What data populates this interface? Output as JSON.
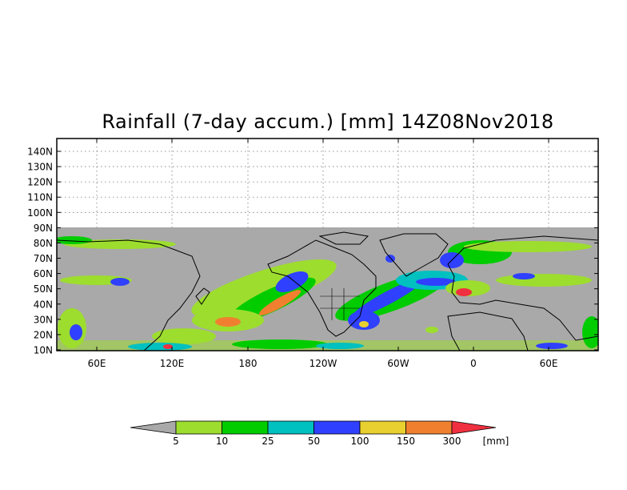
{
  "title": "Rainfall (7-day accum.) [mm] 14Z08Nov2018",
  "map": {
    "lat_labels": [
      "140N",
      "130N",
      "120N",
      "110N",
      "100N",
      "90N",
      "80N",
      "70N",
      "60N",
      "50N",
      "40N",
      "30N",
      "20N",
      "10N"
    ],
    "lon_labels": [
      "60E",
      "120E",
      "180",
      "120W",
      "60W",
      "0",
      "60E"
    ],
    "no_data_color": "#a9a9a9"
  },
  "colorbar": {
    "units": "[mm]",
    "levels": [
      "5",
      "10",
      "25",
      "50",
      "100",
      "150",
      "300"
    ],
    "colors": [
      "#a9a9a9",
      "#9ddd2e",
      "#00cc00",
      "#00c0c0",
      "#3040ff",
      "#e8d030",
      "#f08030",
      "#f03040"
    ]
  }
}
